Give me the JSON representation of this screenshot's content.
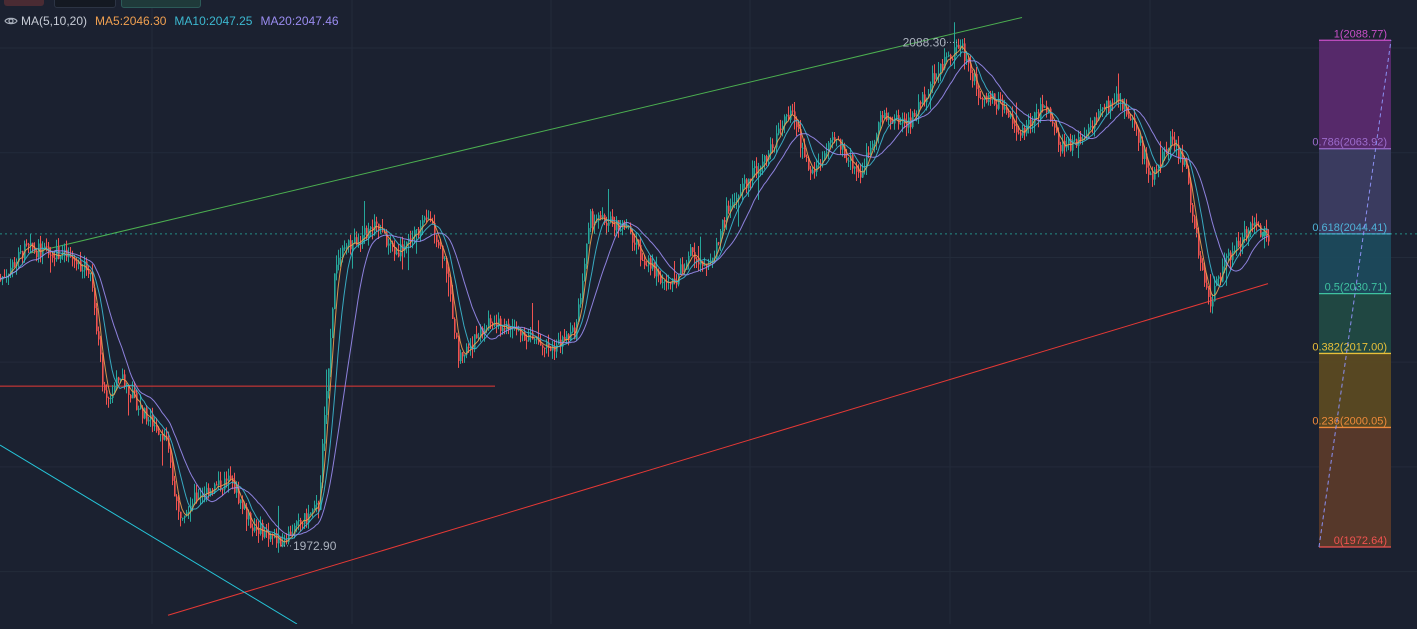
{
  "legend": {
    "indicator": "MA(5,10,20)",
    "ma5": "MA5:2046.30",
    "ma10": "MA10:2047.25",
    "ma20": "MA20:2047.46"
  },
  "colors": {
    "background": "#1b2130",
    "grid": "#232b3a",
    "up": "#26a69a",
    "down": "#ef5350",
    "ma5": "#f0a050",
    "ma10": "#3cb8d0",
    "ma20": "#9a8cf0",
    "channel_top": "#4caf50",
    "channel_bottom": "#e53935",
    "horizontal_line": "#e53935",
    "cyan_trendline": "#26c6da",
    "last_price_line": "#26a69a"
  },
  "chart_data": {
    "type": "candlestick",
    "y_range": [
      1955,
      2098
    ],
    "grid": true,
    "swing_labels": {
      "high": "2088.30",
      "low": "1972.90"
    },
    "swing_values": {
      "high": 2088.3,
      "low": 1972.9
    },
    "last_price": 2044.4,
    "price_path": [
      [
        0,
        2034
      ],
      [
        25,
        2041
      ],
      [
        60,
        2040
      ],
      [
        90,
        2036
      ],
      [
        105,
        2005
      ],
      [
        120,
        2012
      ],
      [
        140,
        2004
      ],
      [
        165,
        1998
      ],
      [
        178,
        1980
      ],
      [
        200,
        1985
      ],
      [
        230,
        1988
      ],
      [
        250,
        1978
      ],
      [
        280,
        1974
      ],
      [
        300,
        1978
      ],
      [
        318,
        1982
      ],
      [
        335,
        2038
      ],
      [
        350,
        2042
      ],
      [
        375,
        2046
      ],
      [
        395,
        2040
      ],
      [
        430,
        2048
      ],
      [
        445,
        2038
      ],
      [
        458,
        2016
      ],
      [
        490,
        2024
      ],
      [
        520,
        2022
      ],
      [
        550,
        2018
      ],
      [
        575,
        2022
      ],
      [
        590,
        2048
      ],
      [
        625,
        2046
      ],
      [
        645,
        2038
      ],
      [
        670,
        2032
      ],
      [
        690,
        2040
      ],
      [
        710,
        2037
      ],
      [
        725,
        2049
      ],
      [
        745,
        2056
      ],
      [
        770,
        2064
      ],
      [
        790,
        2073
      ],
      [
        810,
        2058
      ],
      [
        835,
        2066
      ],
      [
        860,
        2058
      ],
      [
        880,
        2071
      ],
      [
        910,
        2070
      ],
      [
        935,
        2081
      ],
      [
        960,
        2088
      ],
      [
        978,
        2077
      ],
      [
        1000,
        2074
      ],
      [
        1020,
        2067
      ],
      [
        1045,
        2074
      ],
      [
        1060,
        2064
      ],
      [
        1080,
        2066
      ],
      [
        1095,
        2071
      ],
      [
        1118,
        2076
      ],
      [
        1135,
        2068
      ],
      [
        1150,
        2057
      ],
      [
        1170,
        2066
      ],
      [
        1185,
        2060
      ],
      [
        1198,
        2040
      ],
      [
        1210,
        2029
      ],
      [
        1225,
        2038
      ],
      [
        1250,
        2046
      ],
      [
        1265,
        2044
      ]
    ],
    "fibonacci": {
      "levels": [
        {
          "ratio": 1,
          "price": 2088.77,
          "label": "1(2088.77)",
          "color": "#c94fc9",
          "band": "#5a2a6e"
        },
        {
          "ratio": 0.786,
          "price": 2063.92,
          "label": "0.786(2063.92)",
          "color": "#9c6ccc",
          "band": "#3c3d62"
        },
        {
          "ratio": 0.618,
          "price": 2044.41,
          "label": "0.618(2044.41)",
          "color": "#4fb3d9",
          "band": "#1c4a5c"
        },
        {
          "ratio": 0.5,
          "price": 2030.71,
          "label": "0.5(2030.71)",
          "color": "#3fc2a0",
          "band": "#214a43"
        },
        {
          "ratio": 0.382,
          "price": 2017.0,
          "label": "0.382(2017.00)",
          "color": "#e8c03a",
          "band": "#5b4a22"
        },
        {
          "ratio": 0.236,
          "price": 2000.05,
          "label": "0.236(2000.05)",
          "color": "#ef8a3a",
          "band": "#5a3a2a"
        },
        {
          "ratio": 0,
          "price": 1972.64,
          "label": "0(1972.64)",
          "color": "#ef5350",
          "band": null
        }
      ]
    },
    "drawings": [
      {
        "name": "channel-upper",
        "color": "#4caf50",
        "from": [
          30,
          2040
        ],
        "to": [
          1022,
          2094
        ]
      },
      {
        "name": "channel-lower",
        "color": "#e53935",
        "from": [
          168,
          1957
        ],
        "to": [
          1268,
          2033
        ]
      },
      {
        "name": "horizontal-level",
        "color": "#e53935",
        "from": [
          0,
          2009.5
        ],
        "to": [
          495,
          2009.5
        ]
      },
      {
        "name": "descending-trendline",
        "color": "#26c6da",
        "from": [
          0,
          1996
        ],
        "to": [
          297,
          1955
        ]
      }
    ]
  }
}
